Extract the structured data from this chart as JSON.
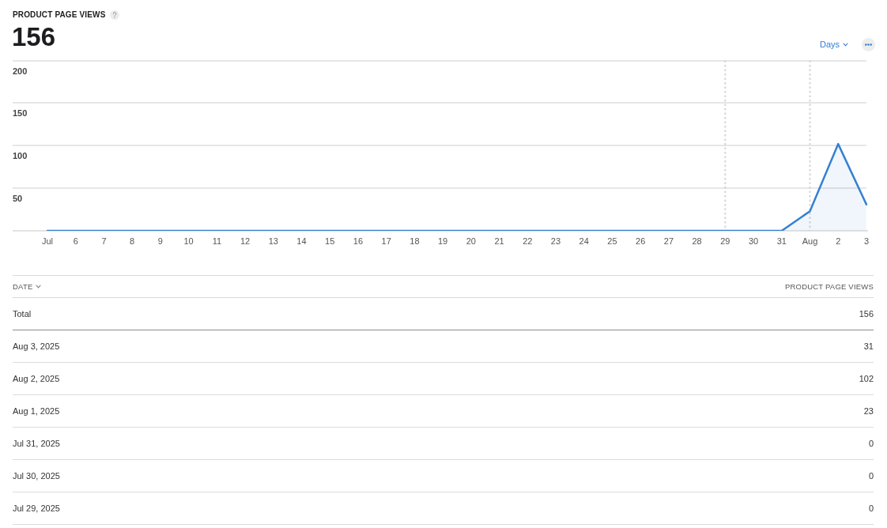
{
  "chart_data": [
    {
      "type": "area",
      "title": "PRODUCT PAGE VIEWS",
      "subtitle": "156",
      "annotations": [
        "Days"
      ],
      "categories": [
        "Jul",
        "6",
        "7",
        "8",
        "9",
        "10",
        "11",
        "12",
        "13",
        "14",
        "15",
        "16",
        "17",
        "18",
        "19",
        "20",
        "21",
        "22",
        "23",
        "24",
        "25",
        "26",
        "27",
        "28",
        "29",
        "30",
        "31",
        "Aug",
        "2",
        "3"
      ],
      "values": [
        0,
        0,
        0,
        0,
        0,
        0,
        0,
        0,
        0,
        0,
        0,
        0,
        0,
        0,
        0,
        0,
        0,
        0,
        0,
        0,
        0,
        0,
        0,
        0,
        0,
        0,
        0,
        23,
        102,
        31
      ],
      "color": "#3580d2",
      "ylim": [
        0,
        200
      ],
      "yticks": [
        50,
        100,
        150,
        200
      ],
      "grid": "y",
      "marker": "none",
      "ref_lines": [
        {
          "axis": "x",
          "value": "29",
          "color": "#d4d4d4",
          "line_style": "dotted"
        },
        {
          "axis": "x",
          "value": "Aug",
          "color": "#d4d4d4",
          "line_style": "dotted"
        }
      ]
    },
    {
      "type": "other",
      "xlabel": "DATE",
      "ylabel": "PRODUCT PAGE VIEWS",
      "categories": [
        "Total",
        "Aug 3, 2025",
        "Aug 2, 2025",
        "Aug 1, 2025",
        "Jul 31, 2025",
        "Jul 30, 2025",
        "Jul 29, 2025"
      ],
      "values": [
        156,
        31,
        102,
        23,
        0,
        0,
        0
      ],
      "data_labels": true
    }
  ]
}
